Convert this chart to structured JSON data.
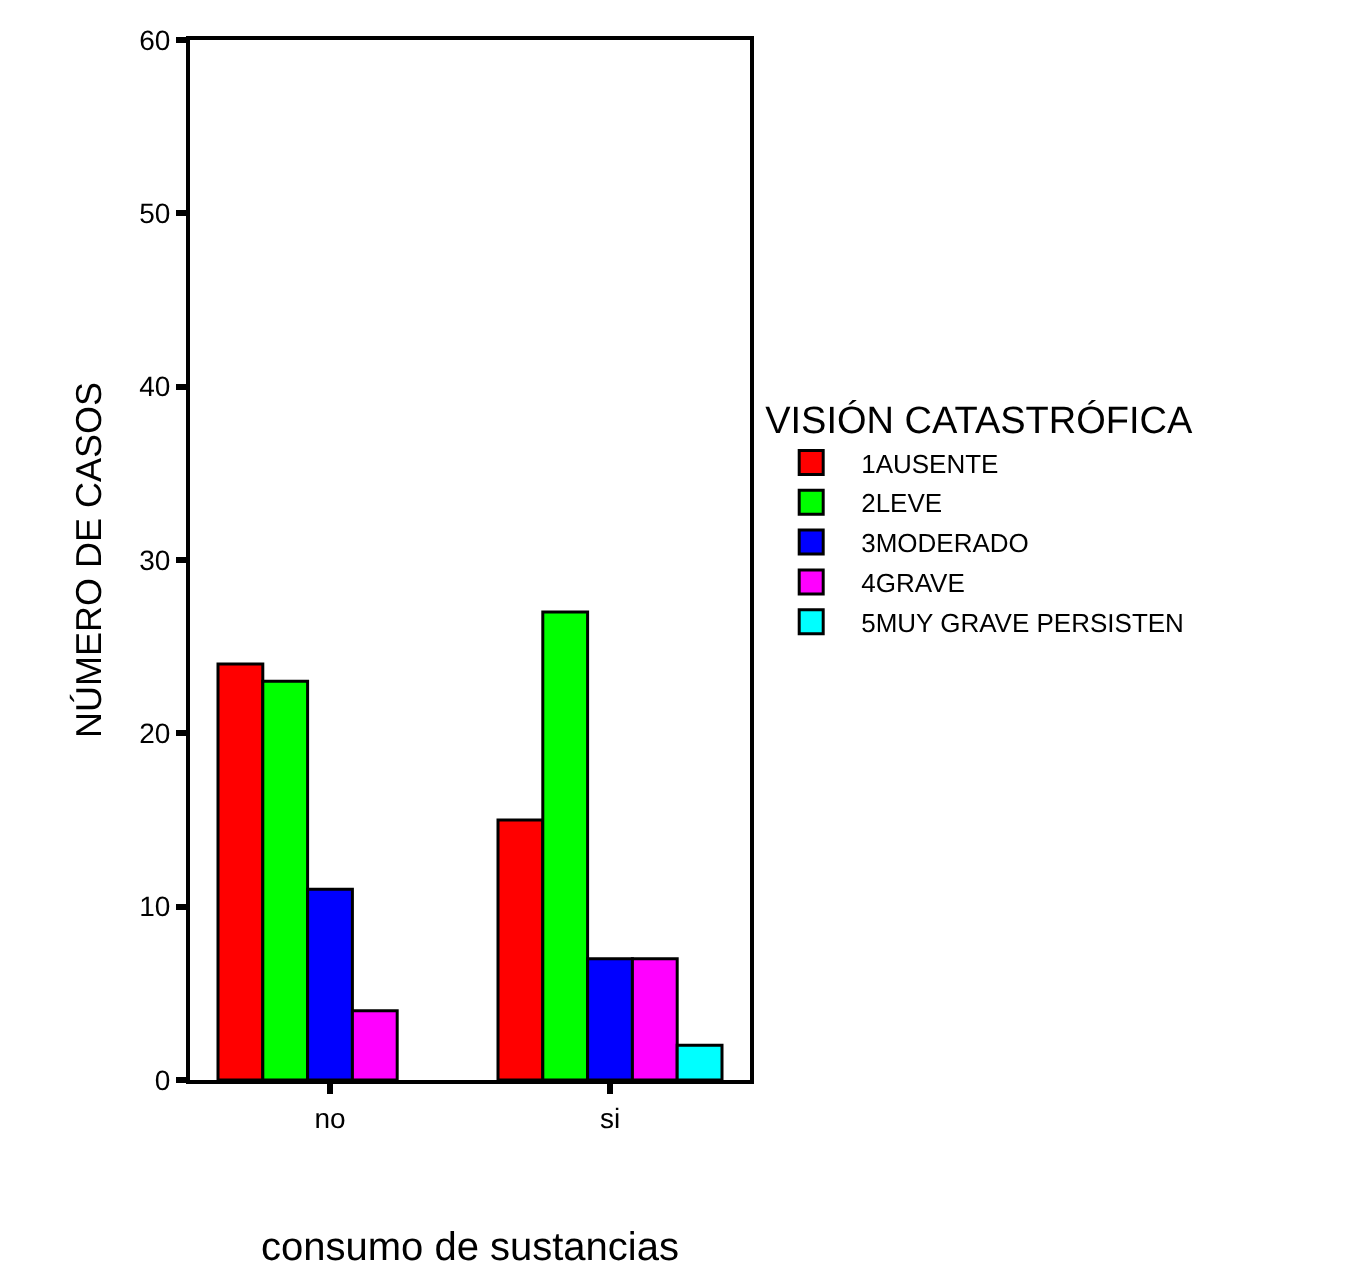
{
  "chart_data": {
    "type": "bar",
    "xlabel": "consumo de sustancias",
    "ylabel": "NÚMERO DE CASOS",
    "legend_title": "VISIÓN CATASTRÓFICA",
    "categories": [
      "no",
      "si"
    ],
    "series": [
      {
        "name": "1AUSENTE",
        "color": "#ff0000",
        "values": [
          24,
          15
        ]
      },
      {
        "name": "2LEVE",
        "color": "#00ff00",
        "values": [
          23,
          27
        ]
      },
      {
        "name": "3MODERADO",
        "color": "#0000ff",
        "values": [
          11,
          7
        ]
      },
      {
        "name": "4GRAVE",
        "color": "#ff00ff",
        "values": [
          4,
          7
        ]
      },
      {
        "name": "5MUY GRAVE PERSISTEN",
        "color": "#00ffff",
        "values": [
          null,
          2
        ]
      }
    ],
    "ylim": [
      0,
      60
    ],
    "yticks": [
      0,
      10,
      20,
      30,
      40,
      50,
      60
    ],
    "grid": false,
    "legend": "right"
  }
}
